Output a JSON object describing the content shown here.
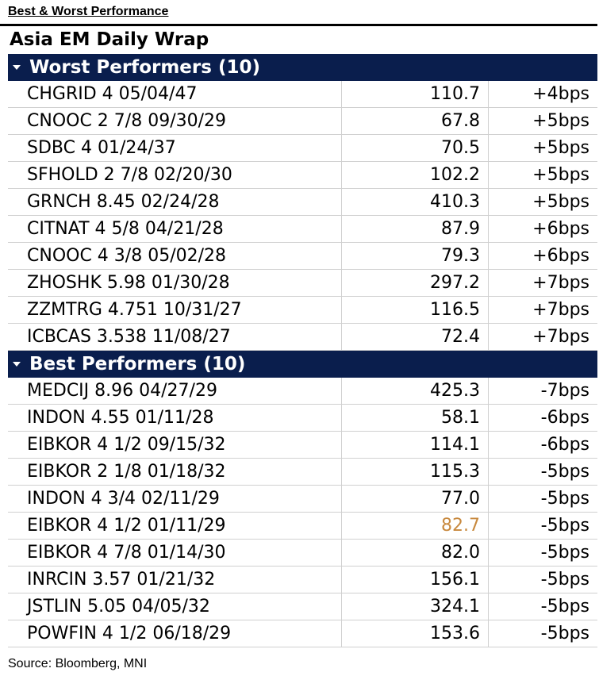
{
  "heading": "Best & Worst Performance",
  "title": "Asia EM Daily Wrap",
  "worst": {
    "header": "Worst Performers (10)",
    "rows": [
      {
        "name": "CHGRID 4 05/04/47",
        "price": "110.7",
        "change": "+4bps"
      },
      {
        "name": "CNOOC 2 7/8 09/30/29",
        "price": "67.8",
        "change": "+5bps"
      },
      {
        "name": "SDBC 4 01/24/37",
        "price": "70.5",
        "change": "+5bps"
      },
      {
        "name": "SFHOLD 2 7/8 02/20/30",
        "price": "102.2",
        "change": "+5bps"
      },
      {
        "name": "GRNCH 8.45 02/24/28",
        "price": "410.3",
        "change": "+5bps"
      },
      {
        "name": "CITNAT 4 5/8 04/21/28",
        "price": "87.9",
        "change": "+6bps"
      },
      {
        "name": "CNOOC 4 3/8 05/02/28",
        "price": "79.3",
        "change": "+6bps"
      },
      {
        "name": "ZHOSHK 5.98 01/30/28",
        "price": "297.2",
        "change": "+7bps"
      },
      {
        "name": "ZZMTRG 4.751 10/31/27",
        "price": "116.5",
        "change": "+7bps"
      },
      {
        "name": "ICBCAS 3.538 11/08/27",
        "price": "72.4",
        "change": "+7bps"
      }
    ]
  },
  "best": {
    "header": "Best Performers (10)",
    "rows": [
      {
        "name": "MEDCIJ 8.96 04/27/29",
        "price": "425.3",
        "change": "-7bps"
      },
      {
        "name": "INDON 4.55 01/11/28",
        "price": "58.1",
        "change": "-6bps"
      },
      {
        "name": "EIBKOR 4 1/2 09/15/32",
        "price": "114.1",
        "change": "-6bps"
      },
      {
        "name": "EIBKOR 2 1/8 01/18/32",
        "price": "115.3",
        "change": "-5bps"
      },
      {
        "name": "INDON 4 3/4 02/11/29",
        "price": "77.0",
        "change": "-5bps"
      },
      {
        "name": "EIBKOR 4 1/2 01/11/29",
        "price": "82.7",
        "change": "-5bps"
      },
      {
        "name": "EIBKOR 4 7/8 01/14/30",
        "price": "82.0",
        "change": "-5bps"
      },
      {
        "name": "INRCIN 3.57 01/21/32",
        "price": "156.1",
        "change": "-5bps"
      },
      {
        "name": "JSTLIN 5.05 04/05/32",
        "price": "324.1",
        "change": "-5bps"
      },
      {
        "name": "POWFIN 4 1/2 06/18/29",
        "price": "153.6",
        "change": "-5bps"
      }
    ]
  },
  "colors": {
    "header_bg": "#0a1e4d",
    "highlight_price": "#c8893e"
  },
  "source": "Source: Bloomberg, MNI"
}
